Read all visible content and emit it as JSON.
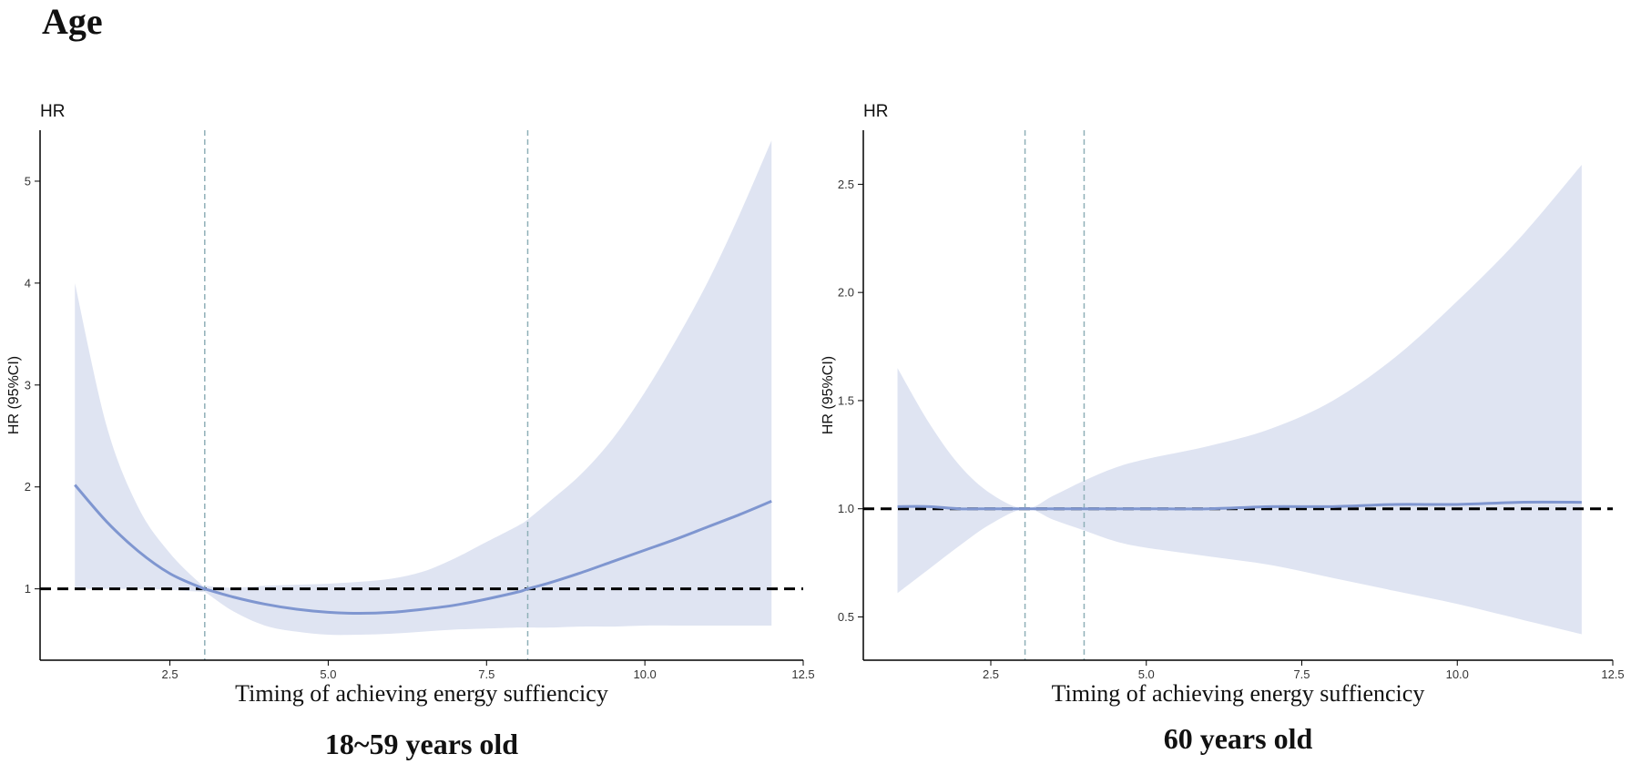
{
  "page": {
    "title": "Age"
  },
  "colors": {
    "band": "#dfe4f2",
    "curve": "#7f96d0",
    "reference": "#000000",
    "vline": "#8fb0b8",
    "axis": "#000000"
  },
  "chart_data": [
    {
      "type": "line",
      "title": "18~59 years old",
      "corner_label": "HR",
      "xlabel": "Timing of achieving energy suffiencicy",
      "ylabel": "HR (95%CI)",
      "xlim": [
        0.45,
        12.5
      ],
      "ylim": [
        0.3,
        5.5
      ],
      "xticks": [
        2.5,
        5.0,
        7.5,
        10.0,
        12.5
      ],
      "xtick_labels": [
        "2.5",
        "5.0",
        "7.5",
        "10.0",
        "12.5"
      ],
      "yticks": [
        1,
        2,
        3,
        4,
        5
      ],
      "ytick_labels": [
        "1",
        "2",
        "3",
        "4",
        "5"
      ],
      "reference_line": 1,
      "vlines": [
        3.05,
        8.15
      ],
      "series": [
        {
          "name": "HR",
          "x": [
            1,
            1.5,
            2,
            2.5,
            3,
            3.05,
            3.5,
            4,
            4.5,
            5,
            5.5,
            6,
            6.5,
            7,
            7.5,
            8,
            8.15,
            8.5,
            9,
            9.5,
            10,
            10.5,
            11,
            11.5,
            12
          ],
          "y": [
            2.02,
            1.66,
            1.37,
            1.15,
            1.01,
            1.0,
            0.92,
            0.85,
            0.8,
            0.77,
            0.76,
            0.77,
            0.8,
            0.84,
            0.9,
            0.97,
            1.0,
            1.06,
            1.16,
            1.27,
            1.38,
            1.49,
            1.61,
            1.73,
            1.86
          ],
          "lower": [
            1.0,
            1.0,
            1.0,
            0.99,
            0.97,
            0.97,
            0.78,
            0.64,
            0.58,
            0.55,
            0.55,
            0.56,
            0.58,
            0.6,
            0.61,
            0.62,
            0.62,
            0.62,
            0.63,
            0.63,
            0.64,
            0.64,
            0.64,
            0.64,
            0.64
          ],
          "upper": [
            4.0,
            2.6,
            1.8,
            1.35,
            1.04,
            1.03,
            1.01,
            1.03,
            1.04,
            1.05,
            1.07,
            1.1,
            1.17,
            1.3,
            1.46,
            1.62,
            1.68,
            1.86,
            2.13,
            2.48,
            2.93,
            3.45,
            4.02,
            4.68,
            5.4
          ]
        }
      ]
    },
    {
      "type": "line",
      "title": "60 years old",
      "corner_label": "HR",
      "xlabel": "Timing of achieving energy suffiencicy",
      "ylabel": "HR (95%CI)",
      "xlim": [
        0.45,
        12.5
      ],
      "ylim": [
        0.3,
        2.75
      ],
      "xticks": [
        2.5,
        5.0,
        7.5,
        10.0,
        12.5
      ],
      "xtick_labels": [
        "2.5",
        "5.0",
        "7.5",
        "10.0",
        "12.5"
      ],
      "yticks": [
        0.5,
        1.0,
        1.5,
        2.0,
        2.5
      ],
      "ytick_labels": [
        "0.5",
        "1.0",
        "1.5",
        "2.0",
        "2.5"
      ],
      "reference_line": 1.0,
      "vlines": [
        3.05,
        4.0
      ],
      "series": [
        {
          "name": "HR",
          "x": [
            1,
            1.5,
            2,
            2.5,
            3.05,
            3.5,
            4,
            4.5,
            5,
            6,
            7,
            8,
            9,
            10,
            11,
            12
          ],
          "y": [
            1.01,
            1.01,
            1.0,
            1.0,
            1.0,
            1.0,
            1.0,
            1.0,
            1.0,
            1.0,
            1.01,
            1.01,
            1.02,
            1.02,
            1.03,
            1.03
          ],
          "lower": [
            0.61,
            0.72,
            0.83,
            0.93,
            1.0,
            0.95,
            0.9,
            0.85,
            0.82,
            0.78,
            0.74,
            0.68,
            0.62,
            0.56,
            0.49,
            0.42
          ],
          "upper": [
            1.65,
            1.4,
            1.2,
            1.07,
            1.0,
            1.06,
            1.13,
            1.19,
            1.23,
            1.29,
            1.37,
            1.5,
            1.7,
            1.96,
            2.25,
            2.59
          ]
        }
      ]
    }
  ]
}
